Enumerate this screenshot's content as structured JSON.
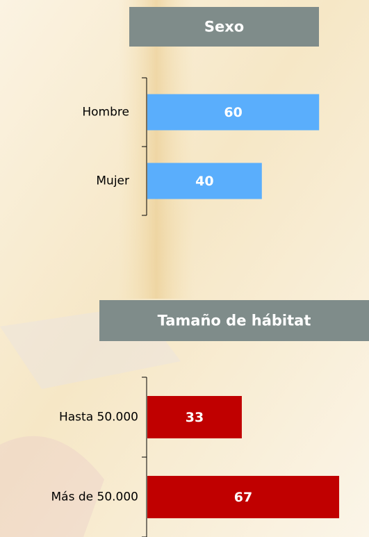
{
  "chart_data": [
    {
      "type": "bar",
      "title": "Sexo",
      "categories": [
        "Hombre",
        "Mujer"
      ],
      "values": [
        60,
        40
      ],
      "color": "#5aaefc"
    },
    {
      "type": "bar",
      "title": "Tamaño de hábitat",
      "categories": [
        "Hasta 50.000",
        "Más de 50.000"
      ],
      "values": [
        33,
        67
      ],
      "color": "#c00000"
    }
  ]
}
